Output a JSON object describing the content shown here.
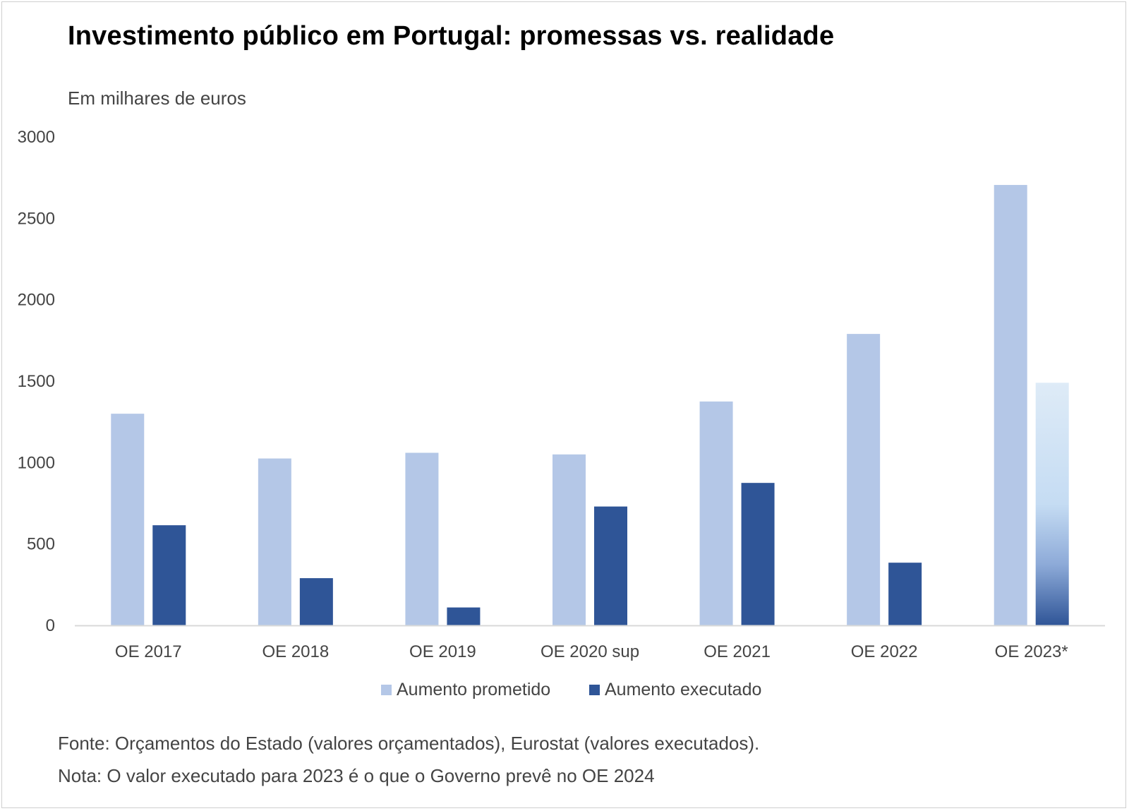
{
  "chart_data": {
    "type": "bar",
    "title": "Investimento público em Portugal: promessas vs. realidade",
    "ylabel": "Em milhares de euros",
    "xlabel": "",
    "ylim": [
      0,
      3000
    ],
    "yticks": [
      "0",
      "500",
      "1000",
      "1500",
      "2000",
      "2500",
      "3000"
    ],
    "categories": [
      "OE 2017",
      "OE 2018",
      "OE 2019",
      "OE 2020 sup",
      "OE 2021",
      "OE 2022",
      "OE 2023*"
    ],
    "series": [
      {
        "name": "Aumento prometido",
        "color": "#b4c7e7",
        "values": [
          1300,
          1025,
          1060,
          1050,
          1375,
          1790,
          2705
        ]
      },
      {
        "name": "Aumento executado",
        "color": "#2f5597",
        "values": [
          615,
          290,
          110,
          730,
          875,
          385,
          1490
        ]
      }
    ],
    "legend": "bottom",
    "grid": false
  },
  "footer": {
    "source": "Fonte: Orçamentos do Estado (valores orçamentados), Eurostat (valores executados).",
    "note": "Nota: O valor executado para 2023 é o que o Governo prevê no OE 2024"
  }
}
